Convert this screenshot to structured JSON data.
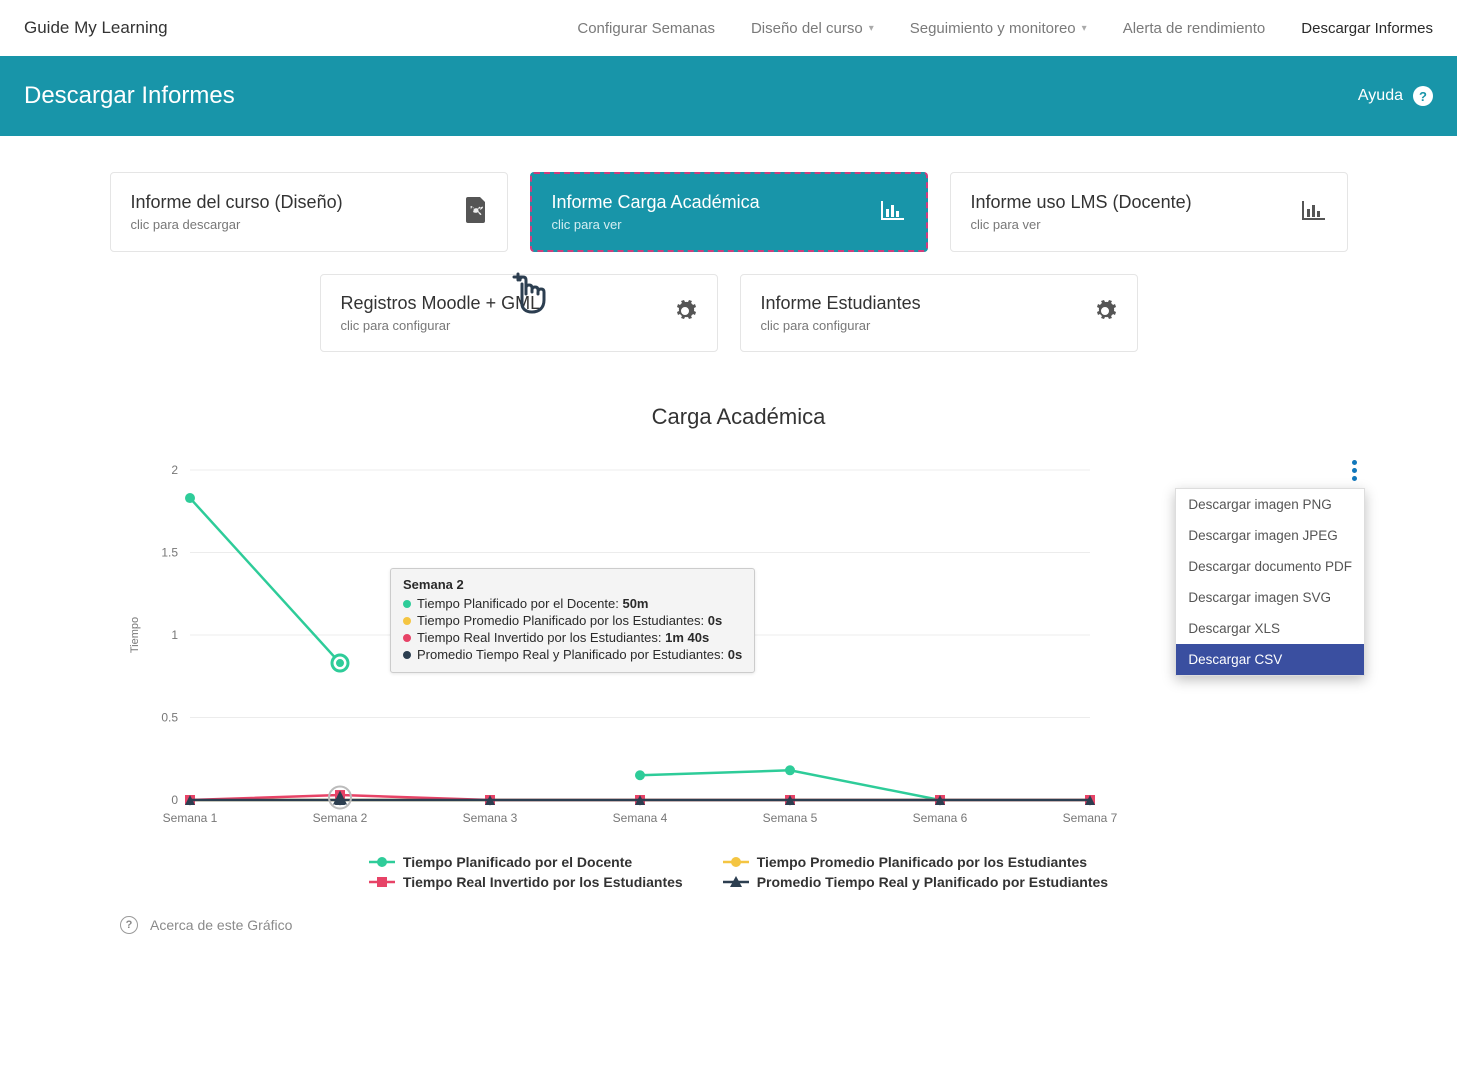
{
  "nav": {
    "brand": "Guide My Learning",
    "items": [
      {
        "label": "Configurar Semanas",
        "dropdown": false
      },
      {
        "label": "Diseño del curso",
        "dropdown": true
      },
      {
        "label": "Seguimiento y monitoreo",
        "dropdown": true
      },
      {
        "label": "Alerta de rendimiento",
        "dropdown": false
      },
      {
        "label": "Descargar Informes",
        "dropdown": false,
        "active": true
      }
    ]
  },
  "banner": {
    "title": "Descargar Informes",
    "help": "Ayuda"
  },
  "cards": {
    "row1": [
      {
        "title": "Informe del curso (Diseño)",
        "sub": "clic para descargar",
        "icon": "pdf"
      },
      {
        "title": "Informe Carga Académica",
        "sub": "clic para ver",
        "icon": "chart",
        "selected": true
      },
      {
        "title": "Informe uso LMS (Docente)",
        "sub": "clic para ver",
        "icon": "chart"
      }
    ],
    "row2": [
      {
        "title": "Registros Moodle + GML",
        "sub": "clic para configurar",
        "icon": "gear"
      },
      {
        "title": "Informe Estudiantes",
        "sub": "clic para configurar",
        "icon": "gear"
      }
    ]
  },
  "chart": {
    "title": "Carga Académica",
    "type": "line",
    "y_axis_label": "Tiempo",
    "categories": [
      "Semana 1",
      "Semana 2",
      "Semana 3",
      "Semana 4",
      "Semana 5",
      "Semana 6",
      "Semana 7"
    ],
    "ylim": [
      0,
      2
    ],
    "ytick_step": 0.5,
    "yticks": [
      0,
      0.5,
      1,
      1.5,
      2
    ],
    "background_color": "#ffffff",
    "grid_color": "#ececec",
    "axis_color": "#cccccc",
    "series": [
      {
        "name": "Tiempo Planificado por el Docente",
        "color": "#2ecc99",
        "marker": "circle",
        "values": [
          1.83,
          0.83,
          null,
          0.15,
          0.18,
          0,
          null
        ]
      },
      {
        "name": "Tiempo Promedio Planificado por los Estudiantes",
        "color": "#f4c542",
        "marker": "circle",
        "values": [
          0,
          0,
          0,
          0,
          0,
          0,
          0
        ]
      },
      {
        "name": "Tiempo Real Invertido por los Estudiantes",
        "color": "#e74367",
        "marker": "square",
        "values": [
          0,
          0.03,
          0,
          0,
          0,
          0,
          0
        ]
      },
      {
        "name": "Promedio Tiempo Real y Planificado por Estudiantes",
        "color": "#2c3e50",
        "marker": "triangle",
        "values": [
          0,
          0,
          0,
          0,
          0,
          0,
          0
        ]
      }
    ],
    "highlight_index": 1,
    "line_width": 2.5,
    "marker_size": 5
  },
  "tooltip": {
    "title": "Semana 2",
    "rows": [
      {
        "color": "#2ecc99",
        "label": "Tiempo Planificado por el Docente:",
        "value": "50m"
      },
      {
        "color": "#f4c542",
        "label": "Tiempo Promedio Planificado por los Estudiantes:",
        "value": "0s"
      },
      {
        "color": "#e74367",
        "label": "Tiempo Real Invertido por los Estudiantes:",
        "value": "1m 40s"
      },
      {
        "color": "#2c3e50",
        "label": "Promedio Tiempo Real y Planificado por Estudiantes:",
        "value": "0s"
      }
    ]
  },
  "export_menu": {
    "items": [
      "Descargar imagen PNG",
      "Descargar imagen JPEG",
      "Descargar documento PDF",
      "Descargar imagen SVG",
      "Descargar XLS",
      "Descargar CSV"
    ],
    "selected_index": 5
  },
  "about_text": "Acerca de este Gráfico"
}
